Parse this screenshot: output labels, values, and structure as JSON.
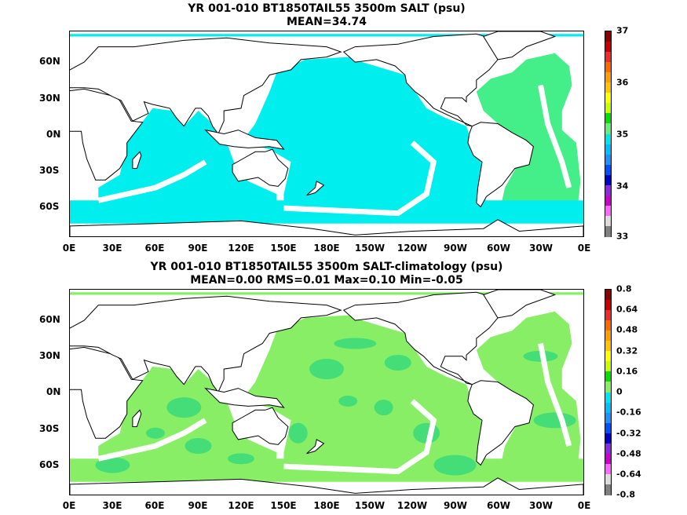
{
  "panels": [
    {
      "id": "top",
      "title_line1": "YR 001-010 BT1850TAIL55 3500m SALT (psu)",
      "title_line2": "MEAN=34.74",
      "lat_ticks": [
        "60N",
        "30N",
        "0N",
        "30S",
        "60S"
      ],
      "lon_ticks": [
        "0E",
        "30E",
        "60E",
        "90E",
        "120E",
        "150E",
        "180E",
        "150W",
        "120W",
        "90W",
        "60W",
        "30W",
        "0E"
      ],
      "colorbar_labels": [
        "37",
        "36",
        "35",
        "34",
        "33"
      ],
      "colorbar_colors": [
        "#8b0000",
        "#c80000",
        "#ee2c2c",
        "#ff6a00",
        "#ff9e00",
        "#ffc400",
        "#ffff00",
        "#c8ff00",
        "#00e000",
        "#66ee77",
        "#00e5ee",
        "#00c0ff",
        "#1e90ff",
        "#0050ff",
        "#0000cd",
        "#8a2be2",
        "#cc00cc",
        "#ff66ff",
        "#dcdcdc",
        "#808080"
      ]
    },
    {
      "id": "bottom",
      "title_line1": "YR 001-010 BT1850TAIL55 3500m SALT-climatology (psu)",
      "title_line2": "MEAN=0.00   RMS=0.01   Max=0.10   Min=-0.05",
      "lat_ticks": [
        "60N",
        "30N",
        "0N",
        "30S",
        "60S"
      ],
      "lon_ticks": [
        "0E",
        "30E",
        "60E",
        "90E",
        "120E",
        "150E",
        "180E",
        "150W",
        "120W",
        "90W",
        "60W",
        "30W",
        "0E"
      ],
      "colorbar_labels": [
        "0.8",
        "0.64",
        "0.48",
        "0.32",
        "0.16",
        "0",
        "-0.16",
        "-0.32",
        "-0.48",
        "-0.64",
        "-0.8"
      ],
      "colorbar_colors": [
        "#8b0000",
        "#c80000",
        "#ee2c2c",
        "#ff6a00",
        "#ff9e00",
        "#ffc400",
        "#ffff00",
        "#c8ff00",
        "#00e000",
        "#88ee66",
        "#00e5ee",
        "#00c0ff",
        "#1e90ff",
        "#0050ff",
        "#0000cd",
        "#8a2be2",
        "#cc00cc",
        "#ff66ff",
        "#dcdcdc",
        "#808080"
      ]
    }
  ],
  "colors": {
    "ocean_top_main": "#00eeee",
    "ocean_top_atlantic": "#44ee88",
    "ocean_bottom_main": "#88ee66",
    "ocean_bottom_alt": "#44dd77",
    "land": "#ffffff",
    "coast": "#000000"
  }
}
